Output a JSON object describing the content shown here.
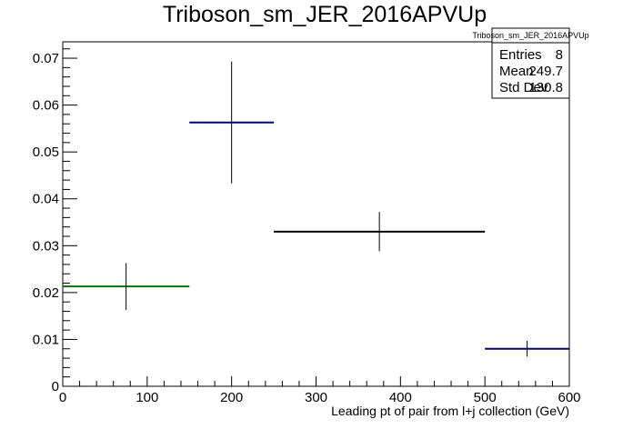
{
  "chart_data": {
    "type": "histogram",
    "title": "Triboson_sm_JER_2016APVUp",
    "xlabel": "Leading pt of pair from l+j collection (GeV)",
    "ylabel": "",
    "xlim": [
      0,
      600
    ],
    "ylim": [
      0,
      0.0735
    ],
    "x_ticks": [
      0,
      100,
      200,
      300,
      400,
      500,
      600
    ],
    "y_ticks": [
      0,
      0.01,
      0.02,
      0.03,
      0.04,
      0.05,
      0.06,
      0.07
    ],
    "x_tick_labels": [
      "0",
      "100",
      "200",
      "300",
      "400",
      "500",
      "600"
    ],
    "y_tick_labels": [
      "0",
      "0.01",
      "0.02",
      "0.03",
      "0.04",
      "0.05",
      "0.06",
      "0.07"
    ],
    "bins": [
      {
        "x_low": 0,
        "x_high": 150,
        "center": 75,
        "value": 0.0213,
        "err": 0.005,
        "color": "#007700"
      },
      {
        "x_low": 150,
        "x_high": 250,
        "center": 200,
        "value": 0.0563,
        "err": 0.013,
        "color": "#000080"
      },
      {
        "x_low": 250,
        "x_high": 500,
        "center": 375,
        "value": 0.033,
        "err": 0.0042,
        "color": "#000000"
      },
      {
        "x_low": 500,
        "x_high": 600,
        "center": 550,
        "value": 0.008,
        "err": 0.0017,
        "color": "#000080"
      }
    ],
    "grid": false
  },
  "stats_box": {
    "title": "Triboson_sm_JER_2016APVUp",
    "rows": [
      {
        "label": "Entries",
        "value": "8"
      },
      {
        "label": "Mean",
        "value": "249.7"
      },
      {
        "label": "Std Dev",
        "value": "130.8"
      }
    ]
  }
}
